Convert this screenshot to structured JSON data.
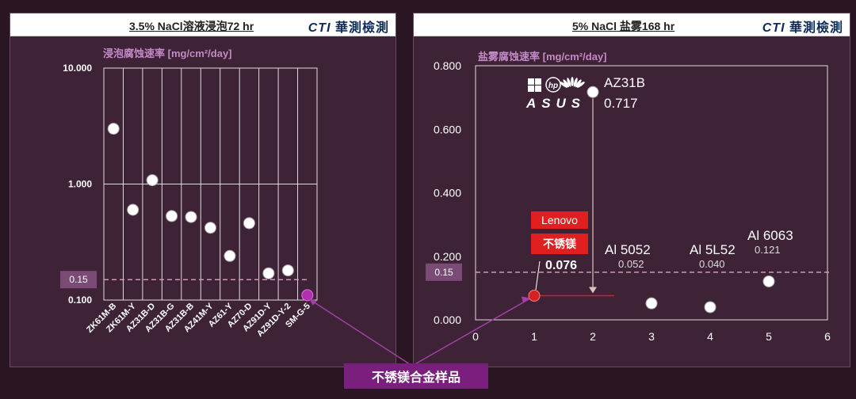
{
  "callout_label": "不锈镁合金样品",
  "brand": {
    "prefix": "CTI",
    "name": "華測檢測"
  },
  "chart_data": [
    {
      "type": "scatter",
      "title": "3.5% NaCl溶液浸泡72 hr",
      "ylabel": "浸泡腐蚀速率 [mg/cm²/day]",
      "yscale": "log",
      "ylim": [
        0.1,
        10
      ],
      "yticks": [
        "0.100",
        "1.000",
        "10.000"
      ],
      "categories": [
        "ZK61M-B",
        "ZK61M-Y",
        "AZ31B-D",
        "AZ31B-G",
        "AZ31B-B",
        "AZ41M-Y",
        "AZ61-Y",
        "AZ70-D",
        "AZ91D-Y",
        "AZ91D-Y-2",
        "SM-G-5"
      ],
      "values": [
        3.0,
        0.6,
        1.08,
        0.53,
        0.52,
        0.42,
        0.24,
        0.46,
        0.17,
        0.18,
        0.11
      ],
      "highlight_index": 10,
      "highlight_color": "#b030b0",
      "reference": {
        "value": 0.15,
        "label": "0.15"
      },
      "grid": true
    },
    {
      "type": "scatter",
      "title": "5% NaCl 盐雾168 hr",
      "ylabel": "盐雾腐蚀速率 [mg/cm²/day]",
      "xlim": [
        0,
        6
      ],
      "ylim": [
        0,
        0.8
      ],
      "xticks": [
        "0",
        "1",
        "2",
        "3",
        "4",
        "5",
        "6"
      ],
      "yticks": [
        "0.000",
        "0.200",
        "0.400",
        "0.600",
        "0.800"
      ],
      "points": [
        {
          "x": 1,
          "y": 0.076,
          "name": "不锈镁",
          "value_label": "0.076",
          "color": "#d42020"
        },
        {
          "x": 2,
          "y": 0.717,
          "name": "AZ31B",
          "value_label": "0.717",
          "color": "#ffffff"
        },
        {
          "x": 3,
          "y": 0.052,
          "name": "Al 5052",
          "value_label": "0.052",
          "color": "#ffffff"
        },
        {
          "x": 4,
          "y": 0.04,
          "name": "Al 5L52",
          "value_label": "0.040",
          "color": "#ffffff"
        },
        {
          "x": 5,
          "y": 0.121,
          "name": "Al 6063",
          "value_label": "0.121",
          "color": "#ffffff"
        }
      ],
      "reference": {
        "value": 0.15,
        "label": "0.15"
      },
      "brand_tags": [
        "Lenovo"
      ],
      "logo_marks": [
        "windows-logo",
        "hp-logo",
        "huawei-logo",
        "asus-logo"
      ]
    }
  ]
}
